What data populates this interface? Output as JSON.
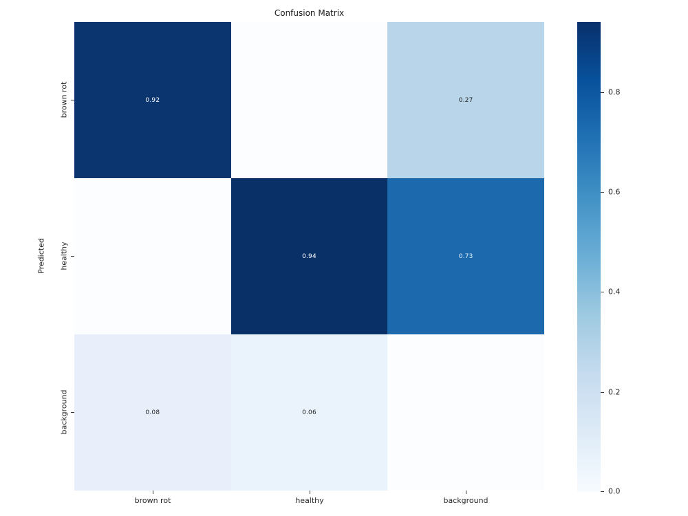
{
  "title": "Confusion Matrix",
  "chart_data": {
    "type": "heatmap",
    "title": "Confusion Matrix",
    "xlabel": "",
    "ylabel": "Predicted",
    "x_categories": [
      "brown rot",
      "healthy",
      "background"
    ],
    "y_categories": [
      "brown rot",
      "healthy",
      "background"
    ],
    "values": [
      [
        0.92,
        0.0,
        0.27
      ],
      [
        0.0,
        0.94,
        0.73
      ],
      [
        0.08,
        0.06,
        0.0
      ]
    ],
    "annotations_shown": [
      [
        "0.92",
        "",
        "0.27"
      ],
      [
        "",
        "0.94",
        "0.73"
      ],
      [
        "0.08",
        "0.06",
        ""
      ]
    ],
    "colormap": "Blues",
    "vmin": 0.0,
    "vmax": 0.94,
    "colorbar_ticks": [
      0.0,
      0.2,
      0.4,
      0.6,
      0.8
    ],
    "legend_position": "right-colorbar",
    "grid": "off"
  },
  "colors": {
    "colormap_low": "#f7fbff",
    "colormap_high": "#08306b",
    "annotation_on_dark": "#ffffff",
    "annotation_on_light": "#262626"
  },
  "grid": {
    "cells": [
      {
        "text": "0.92",
        "bg": "#0a356e",
        "fg": "#ffffff"
      },
      {
        "text": "",
        "bg": "#fcfdff",
        "fg": "#262626"
      },
      {
        "text": "0.27",
        "bg": "#b9d5ea",
        "fg": "#262626"
      },
      {
        "text": "",
        "bg": "#fcfdff",
        "fg": "#262626"
      },
      {
        "text": "0.94",
        "bg": "#093067",
        "fg": "#ffffff"
      },
      {
        "text": "0.73",
        "bg": "#1c69ae",
        "fg": "#eaf2fb"
      },
      {
        "text": "0.08",
        "bg": "#e8effa",
        "fg": "#262626"
      },
      {
        "text": "0.06",
        "bg": "#eaf2fb",
        "fg": "#262626"
      },
      {
        "text": "",
        "bg": "#fcfdff",
        "fg": "#262626"
      }
    ]
  },
  "y_axis": {
    "label": "Predicted",
    "ticks": [
      "brown rot",
      "healthy",
      "background"
    ]
  },
  "x_axis": {
    "ticks": [
      "brown rot",
      "healthy",
      "background"
    ]
  },
  "colorbar": {
    "ticks": [
      "0.0",
      "0.2",
      "0.4",
      "0.6",
      "0.8"
    ]
  }
}
